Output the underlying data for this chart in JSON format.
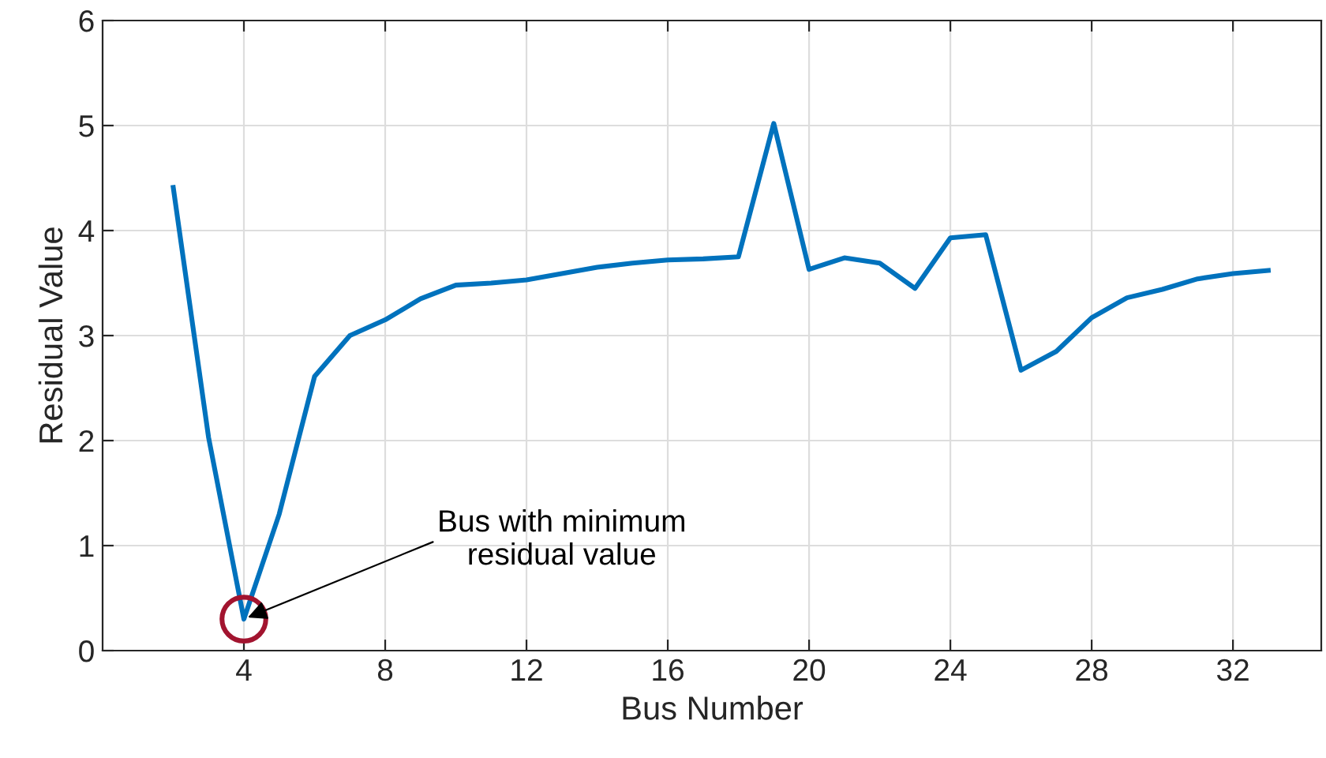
{
  "chart_data": {
    "type": "line",
    "xlabel": "Bus Number",
    "ylabel": "Residual Value",
    "x": [
      2,
      3,
      4,
      5,
      6,
      7,
      8,
      9,
      10,
      11,
      12,
      13,
      14,
      15,
      16,
      17,
      18,
      19,
      20,
      21,
      22,
      23,
      24,
      25,
      26,
      27,
      28,
      29,
      30,
      31,
      32,
      33
    ],
    "series": [
      {
        "color": "#0072bd",
        "values": [
          4.41,
          2.03,
          0.3,
          1.3,
          2.61,
          3.0,
          3.15,
          3.35,
          3.48,
          3.5,
          3.53,
          3.59,
          3.65,
          3.69,
          3.72,
          3.73,
          3.75,
          5.02,
          3.63,
          3.74,
          3.69,
          3.45,
          3.93,
          3.96,
          2.67,
          2.85,
          3.17,
          3.36,
          3.44,
          3.54,
          3.59,
          3.62
        ]
      }
    ],
    "xlim": [
      0,
      34.5
    ],
    "ylim": [
      0,
      6
    ],
    "xticks": [
      4,
      8,
      12,
      16,
      20,
      24,
      28,
      32
    ],
    "yticks": [
      0,
      1,
      2,
      3,
      4,
      5,
      6
    ],
    "grid": true,
    "marker": "none",
    "line_style": "solid",
    "annotations": [
      {
        "text": "Bus with minimum\nresidual value",
        "x": 4,
        "y": 0.3
      }
    ]
  }
}
